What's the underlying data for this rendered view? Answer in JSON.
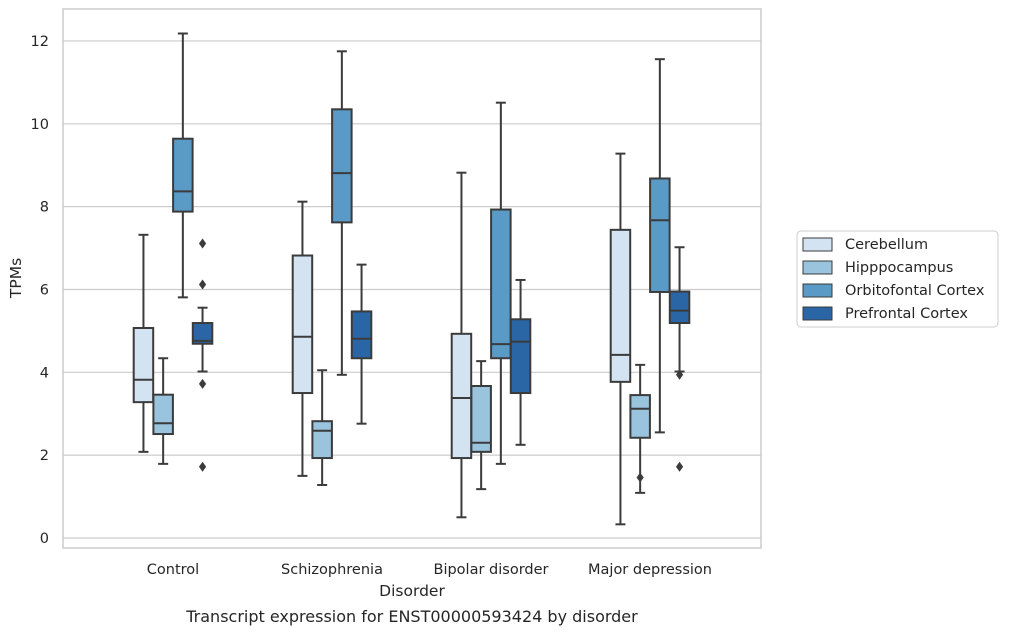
{
  "chart_data": {
    "type": "box",
    "xlabel": "Disorder",
    "ylabel": "TPMs",
    "caption": "Transcript expression for ENST00000593424 by disorder",
    "ylim": [
      -0.2,
      12.75
    ],
    "yticks": [
      "0",
      "2",
      "4",
      "6",
      "8",
      "10",
      "12"
    ],
    "grid": "horizontal",
    "legend_position": "right",
    "categories": [
      "Control",
      "Schizophrenia",
      "Bipolar disorder",
      "Major depression"
    ],
    "series": [
      {
        "name": "Cerebellum",
        "color": "#d4e3f2",
        "boxes": [
          {
            "whislo": 2.08,
            "q1": 3.28,
            "med": 3.82,
            "q3": 5.07,
            "whishi": 7.32,
            "fliers": []
          },
          {
            "whislo": 1.5,
            "q1": 3.5,
            "med": 4.86,
            "q3": 6.82,
            "whishi": 8.12,
            "fliers": []
          },
          {
            "whislo": 0.5,
            "q1": 1.93,
            "med": 3.38,
            "q3": 4.93,
            "whishi": 8.82,
            "fliers": []
          },
          {
            "whislo": 0.33,
            "q1": 3.77,
            "med": 4.42,
            "q3": 7.44,
            "whishi": 9.28,
            "fliers": []
          }
        ]
      },
      {
        "name": "Hipppocampus",
        "color": "#9ac3dd",
        "boxes": [
          {
            "whislo": 1.79,
            "q1": 2.51,
            "med": 2.77,
            "q3": 3.46,
            "whishi": 4.34,
            "fliers": []
          },
          {
            "whislo": 1.28,
            "q1": 1.93,
            "med": 2.59,
            "q3": 2.82,
            "whishi": 4.05,
            "fliers": []
          },
          {
            "whislo": 1.18,
            "q1": 2.08,
            "med": 2.3,
            "q3": 3.67,
            "whishi": 4.27,
            "fliers": []
          },
          {
            "whislo": 1.09,
            "q1": 2.42,
            "med": 3.12,
            "q3": 3.45,
            "whishi": 4.18,
            "fliers": [
              1.46
            ]
          }
        ]
      },
      {
        "name": "Orbitofontal Cortex",
        "color": "#5a9ac6",
        "boxes": [
          {
            "whislo": 5.81,
            "q1": 7.88,
            "med": 8.37,
            "q3": 9.64,
            "whishi": 12.18,
            "fliers": []
          },
          {
            "whislo": 3.94,
            "q1": 7.62,
            "med": 8.81,
            "q3": 10.35,
            "whishi": 11.75,
            "fliers": []
          },
          {
            "whislo": 1.79,
            "q1": 4.34,
            "med": 4.68,
            "q3": 7.93,
            "whishi": 10.51,
            "fliers": []
          },
          {
            "whislo": 2.55,
            "q1": 5.94,
            "med": 7.67,
            "q3": 8.68,
            "whishi": 11.56,
            "fliers": []
          }
        ]
      },
      {
        "name": "Prefrontal Cortex",
        "color": "#2a66a6",
        "boxes": [
          {
            "whislo": 4.02,
            "q1": 4.69,
            "med": 4.76,
            "q3": 5.19,
            "whishi": 5.56,
            "fliers": [
              7.11,
              6.12,
              3.72,
              1.72
            ]
          },
          {
            "whislo": 2.76,
            "q1": 4.34,
            "med": 4.81,
            "q3": 5.47,
            "whishi": 6.6,
            "fliers": []
          },
          {
            "whislo": 2.25,
            "q1": 3.5,
            "med": 4.74,
            "q3": 5.28,
            "whishi": 6.23,
            "fliers": []
          },
          {
            "whislo": 4.02,
            "q1": 5.19,
            "med": 5.49,
            "q3": 5.95,
            "whishi": 7.02,
            "fliers": [
              3.94,
              1.72
            ]
          }
        ]
      }
    ]
  }
}
